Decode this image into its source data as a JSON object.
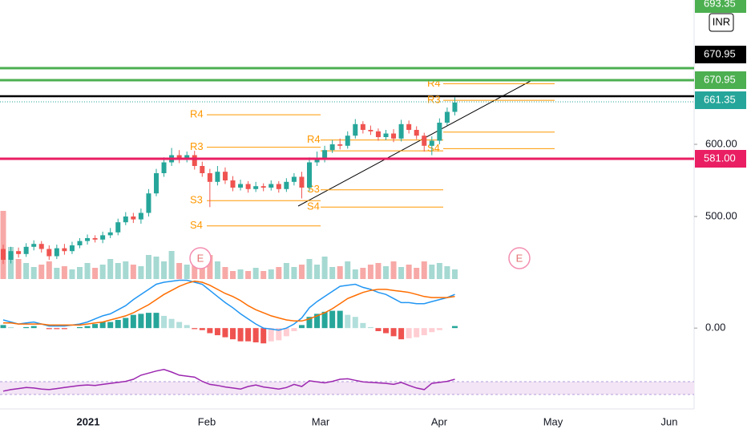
{
  "chart_data": {
    "type": "candlestick",
    "currency": "INR",
    "ylim": [
      410,
      800
    ],
    "yticks": [
      {
        "value": 500,
        "label": "500.00"
      },
      {
        "value": 600,
        "label": "600.00"
      }
    ],
    "up_color": "#26a69a",
    "down_color": "#ef5350",
    "open": [
      455,
      440,
      452,
      448,
      458,
      462,
      455,
      445,
      456,
      452,
      460,
      466,
      470,
      468,
      474,
      478,
      492,
      500,
      496,
      505,
      532,
      560,
      575,
      585,
      580,
      585,
      570,
      560,
      548,
      562,
      550,
      540,
      545,
      538,
      542,
      540,
      545,
      538,
      548,
      555,
      540,
      575,
      580,
      592,
      600,
      598,
      612,
      628,
      620,
      618,
      610,
      615,
      608,
      628,
      620,
      612,
      598,
      605,
      630,
      645
    ],
    "high": [
      461,
      458,
      457,
      463,
      467,
      466,
      460,
      461,
      462,
      465,
      470,
      475,
      474,
      479,
      484,
      497,
      506,
      505,
      511,
      538,
      566,
      582,
      595,
      592,
      590,
      591,
      576,
      566,
      570,
      568,
      556,
      551,
      549,
      548,
      546,
      550,
      549,
      553,
      560,
      562,
      582,
      590,
      598,
      606,
      608,
      618,
      635,
      632,
      626,
      622,
      620,
      621,
      634,
      633,
      625,
      616,
      611,
      636,
      651,
      665
    ],
    "low": [
      434,
      435,
      443,
      444,
      453,
      450,
      440,
      441,
      447,
      448,
      456,
      461,
      464,
      463,
      470,
      474,
      488,
      491,
      490,
      500,
      528,
      555,
      570,
      574,
      575,
      565,
      555,
      513,
      543,
      545,
      535,
      536,
      533,
      534,
      535,
      536,
      533,
      534,
      543,
      525,
      535,
      570,
      575,
      588,
      593,
      594,
      608,
      615,
      613,
      605,
      606,
      603,
      604,
      615,
      607,
      590,
      585,
      600,
      626,
      640
    ],
    "close": [
      440,
      452,
      448,
      458,
      462,
      455,
      445,
      456,
      452,
      460,
      466,
      470,
      468,
      474,
      478,
      492,
      500,
      496,
      505,
      532,
      560,
      575,
      585,
      580,
      585,
      570,
      560,
      548,
      562,
      550,
      540,
      545,
      538,
      542,
      540,
      545,
      538,
      548,
      555,
      540,
      575,
      580,
      592,
      600,
      598,
      612,
      628,
      620,
      618,
      610,
      615,
      608,
      628,
      620,
      612,
      598,
      605,
      630,
      645,
      658
    ],
    "volume": {
      "ylim": [
        0,
        100
      ],
      "values": [
        85,
        40,
        25,
        20,
        15,
        18,
        22,
        14,
        16,
        12,
        15,
        20,
        14,
        18,
        25,
        20,
        22,
        18,
        16,
        30,
        28,
        22,
        35,
        20,
        18,
        25,
        15,
        30,
        22,
        15,
        10,
        12,
        10,
        14,
        10,
        12,
        15,
        20,
        15,
        18,
        25,
        18,
        28,
        15,
        16,
        22,
        12,
        14,
        18,
        20,
        16,
        22,
        15,
        18,
        14,
        22,
        18,
        20,
        16,
        12
      ]
    },
    "macd": {
      "ylim": [
        -40,
        45
      ],
      "yticks": [
        {
          "value": 0,
          "label": "0.00"
        }
      ],
      "macd_color": "#2196f3",
      "signal_color": "#ff6d00",
      "macd": [
        8,
        6,
        4,
        5,
        6,
        4,
        2,
        2,
        2,
        3,
        4,
        6,
        9,
        12,
        14,
        18,
        22,
        28,
        33,
        38,
        43,
        45,
        46,
        47,
        47,
        45,
        43,
        37,
        31,
        25,
        20,
        14,
        9,
        4,
        0,
        -1,
        -2,
        0,
        4,
        10,
        20,
        26,
        31,
        36,
        41,
        42,
        43,
        40,
        38,
        35,
        33,
        29,
        25,
        25,
        24,
        24,
        26,
        28,
        30,
        33
      ],
      "signal": [
        5,
        5,
        4,
        4,
        4,
        4,
        3,
        3,
        3,
        3,
        3,
        4,
        5,
        6,
        8,
        10,
        12,
        15,
        19,
        23,
        28,
        33,
        37,
        41,
        44,
        46,
        45,
        42,
        38,
        34,
        31,
        27,
        22,
        18,
        15,
        12,
        10,
        8,
        7,
        7,
        9,
        12,
        15,
        19,
        24,
        29,
        32,
        35,
        37,
        38,
        38,
        37,
        36,
        35,
        33,
        31,
        30,
        30,
        30,
        31
      ],
      "histogram": [
        3,
        1,
        0,
        1,
        2,
        0,
        -1,
        -1,
        -1,
        0,
        1,
        2,
        4,
        6,
        6,
        8,
        10,
        13,
        14,
        15,
        15,
        12,
        9,
        6,
        3,
        -1,
        -2,
        -5,
        -7,
        -9,
        -11,
        -13,
        -13,
        -14,
        -15,
        -13,
        -12,
        -8,
        -3,
        3,
        11,
        14,
        16,
        17,
        17,
        13,
        11,
        5,
        1,
        -3,
        -5,
        -8,
        -11,
        -10,
        -9,
        -7,
        -4,
        -2,
        0,
        2
      ]
    },
    "rsi": {
      "ylim": [
        20,
        90
      ],
      "color": "#9c27b0",
      "values": [
        39,
        42,
        44,
        46,
        45,
        43,
        42,
        44,
        46,
        48,
        50,
        51,
        50,
        52,
        54,
        56,
        58,
        62,
        70,
        74,
        78,
        81,
        76,
        70,
        68,
        66,
        58,
        52,
        50,
        47,
        45,
        43,
        48,
        51,
        47,
        45,
        43,
        46,
        52,
        48,
        59,
        57,
        55,
        58,
        62,
        63,
        60,
        57,
        56,
        55,
        54,
        52,
        56,
        50,
        45,
        42,
        54,
        56,
        58,
        62
      ]
    },
    "x_labels": [
      "2021",
      "Feb",
      "Mar",
      "Apr",
      "May",
      "Jun"
    ],
    "price_lines": [
      {
        "label": "693.35",
        "color": "#4caf50"
      },
      {
        "label": "670.95",
        "color": "#000000"
      },
      {
        "label": "670.95",
        "color": "#4caf50"
      },
      {
        "label": "661.35",
        "color": "#26a69a"
      },
      {
        "label": "581.00",
        "color": "#e91e63"
      }
    ],
    "pivot_color": "#ff9800",
    "pivots": [
      [
        {
          "label": "R4",
          "value": 641
        },
        {
          "label": "R3",
          "value": 596
        },
        {
          "label": "S3",
          "value": 522
        },
        {
          "label": "S4",
          "value": 487
        }
      ],
      [
        {
          "label": "R4",
          "value": 606
        },
        {
          "label": null,
          "value": 591
        },
        {
          "label": "S3",
          "value": 537
        },
        {
          "label": "S4",
          "value": 513
        }
      ],
      [
        {
          "label": "R4",
          "value": 684
        },
        {
          "label": "R3",
          "value": 661
        },
        {
          "label": null,
          "value": 617
        },
        {
          "label": "S4",
          "value": 594
        }
      ]
    ],
    "events": [
      "E",
      "E"
    ]
  }
}
